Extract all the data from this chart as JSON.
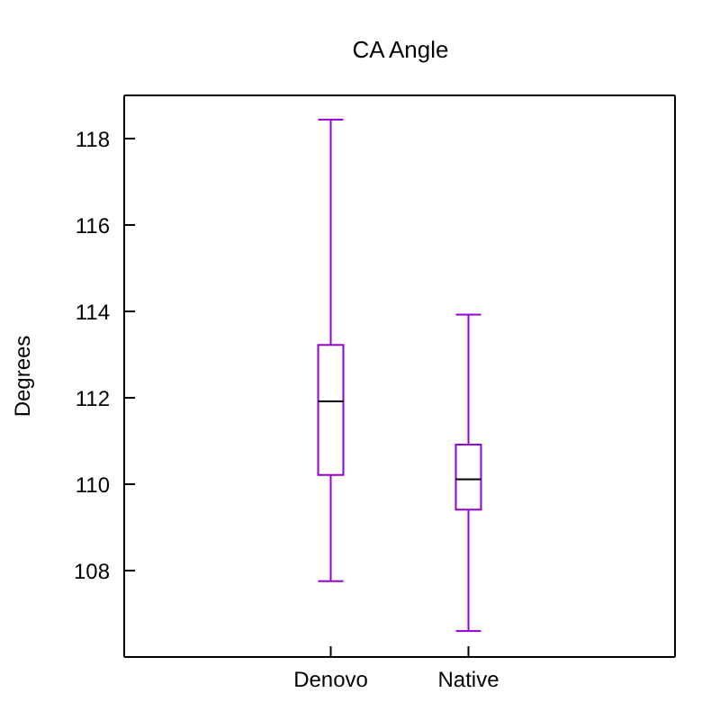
{
  "chart_data": {
    "type": "box",
    "title": "CA Angle",
    "ylabel": "Degrees",
    "categories": [
      "Denovo",
      "Native"
    ],
    "color": "#9400d3",
    "boxes": [
      {
        "low": 107.75,
        "q1": 110.2,
        "median": 111.9,
        "q3": 113.2,
        "high": 118.4
      },
      {
        "low": 106.6,
        "q1": 109.4,
        "median": 110.1,
        "q3": 110.9,
        "high": 113.9
      }
    ],
    "ylim": [
      106,
      119
    ],
    "yticks": [
      108,
      110,
      112,
      114,
      116,
      118
    ]
  }
}
